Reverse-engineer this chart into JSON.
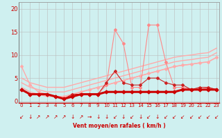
{
  "x": [
    0,
    1,
    2,
    3,
    4,
    5,
    6,
    7,
    8,
    9,
    10,
    11,
    12,
    13,
    14,
    15,
    16,
    17,
    18,
    19,
    20,
    21,
    22,
    23
  ],
  "background_color": "#cff0f0",
  "grid_color": "#bbbbbb",
  "xlabel": "Vent moyen/en rafales ( km/h )",
  "ylabel_ticks": [
    0,
    5,
    10,
    15,
    20
  ],
  "xlim": [
    -0.3,
    23.3
  ],
  "ylim": [
    -0.3,
    21.5
  ],
  "line_upper1": {
    "y": [
      5.0,
      4.0,
      3.5,
      3.0,
      3.0,
      3.0,
      3.5,
      4.0,
      4.5,
      5.0,
      5.5,
      6.0,
      6.5,
      7.0,
      7.5,
      8.0,
      8.5,
      9.0,
      9.5,
      9.8,
      10.0,
      10.3,
      10.5,
      11.5
    ],
    "color": "#ffaaaa",
    "lw": 1.0
  },
  "line_upper2": {
    "y": [
      4.0,
      3.0,
      2.5,
      2.0,
      2.0,
      2.0,
      2.5,
      3.0,
      3.5,
      4.0,
      4.5,
      5.0,
      5.5,
      6.0,
      6.5,
      7.0,
      7.5,
      8.0,
      8.5,
      8.8,
      9.0,
      9.3,
      9.5,
      10.5
    ],
    "color": "#ffaaaa",
    "lw": 1.0
  },
  "line_upper3": {
    "y": [
      3.0,
      2.0,
      1.5,
      1.0,
      1.0,
      1.0,
      1.5,
      2.0,
      2.5,
      3.0,
      3.5,
      4.0,
      4.5,
      5.0,
      5.5,
      6.0,
      6.5,
      7.0,
      7.5,
      7.8,
      8.0,
      8.3,
      8.5,
      9.5
    ],
    "color": "#ffaaaa",
    "lw": 1.0
  },
  "line_drop": {
    "y": [
      7.5,
      3.5,
      2.0,
      1.5,
      1.0,
      1.0,
      1.5,
      2.0,
      2.5,
      3.0,
      3.5,
      4.0,
      4.5,
      5.0,
      5.5,
      6.0,
      6.5,
      7.0,
      7.5,
      7.8,
      8.0,
      8.3,
      8.5,
      9.5
    ],
    "color": "#ffaaaa",
    "lw": 1.0,
    "marker": "D",
    "ms": 2.0
  },
  "line_mid_pink": {
    "y": [
      2.5,
      1.5,
      1.5,
      1.5,
      1.0,
      0.5,
      1.5,
      1.5,
      1.5,
      1.5,
      3.5,
      15.5,
      12.5,
      3.0,
      3.0,
      16.5,
      16.5,
      8.5,
      3.0,
      3.0,
      2.5,
      2.5,
      3.0,
      2.5
    ],
    "color": "#ff8888",
    "lw": 0.8,
    "marker": "D",
    "ms": 2.0
  },
  "line_dark1": {
    "y": [
      2.5,
      1.5,
      1.5,
      1.5,
      1.0,
      0.5,
      1.5,
      1.5,
      1.5,
      1.5,
      4.0,
      6.5,
      4.0,
      3.5,
      3.5,
      5.0,
      5.0,
      4.0,
      3.5,
      3.5,
      2.5,
      3.0,
      3.0,
      2.5
    ],
    "color": "#cc2222",
    "lw": 0.8,
    "marker": "D",
    "ms": 2.0
  },
  "line_thick": {
    "y": [
      2.5,
      1.5,
      1.5,
      1.5,
      1.0,
      0.5,
      1.0,
      1.5,
      1.5,
      1.5,
      2.0,
      2.0,
      2.0,
      2.0,
      2.0,
      2.0,
      2.0,
      2.0,
      2.0,
      2.5,
      2.5,
      2.5,
      2.5,
      2.5
    ],
    "color": "#cc0000",
    "lw": 2.2,
    "marker": "D",
    "ms": 2.5
  },
  "arrow_symbols": [
    "↙",
    "↓",
    "↗",
    "↗",
    "↗",
    "↗",
    "↓",
    "↗",
    "→",
    "↓",
    "↓",
    "↙",
    "↓",
    "↙",
    "↓",
    "↙",
    "↓",
    "↙",
    "↙",
    "↙",
    "↙",
    "↙",
    "↙",
    "↙"
  ],
  "arrow_color": "#cc0000",
  "arrow_fontsize": 5.5
}
